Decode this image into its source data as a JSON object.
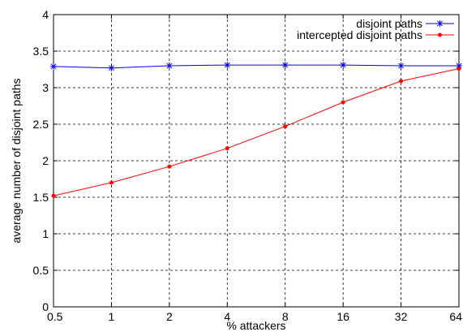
{
  "chart_data": {
    "type": "line",
    "xlabel": "% attackers",
    "ylabel": "average number of disjoint paths",
    "categories": [
      "0.5",
      "1",
      "2",
      "4",
      "8",
      "16",
      "32",
      "64"
    ],
    "ylim": [
      0,
      4
    ],
    "yticks": [
      "0",
      "0.5",
      "1",
      "1.5",
      "2",
      "2.5",
      "3",
      "3.5",
      "4"
    ],
    "grid": true,
    "legend_position": "top-right",
    "series": [
      {
        "name": "disjoint paths",
        "color": "#0000ff",
        "marker": "star",
        "values": [
          3.29,
          3.27,
          3.3,
          3.31,
          3.31,
          3.31,
          3.3,
          3.3
        ]
      },
      {
        "name": "intercepted disjoint paths",
        "color": "#ff0000",
        "marker": "dot",
        "values": [
          1.52,
          1.7,
          1.92,
          2.17,
          2.47,
          2.8,
          3.09,
          3.26
        ]
      }
    ]
  }
}
